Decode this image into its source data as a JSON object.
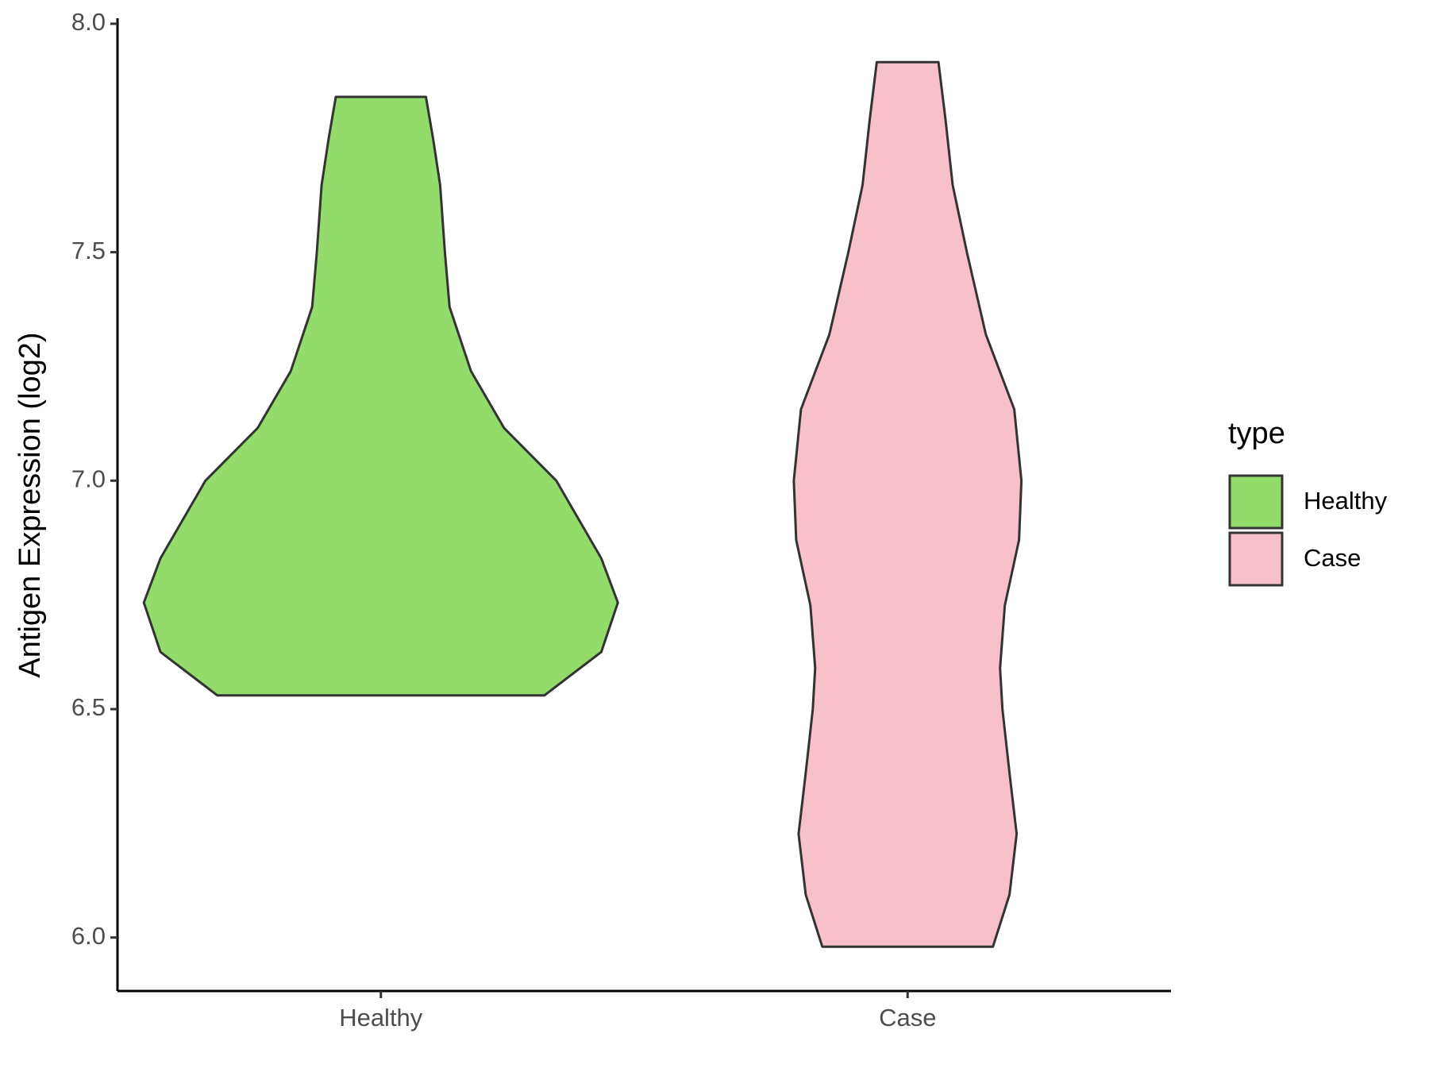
{
  "chart_data": {
    "type": "violin",
    "y_label": "Antigen Expression (log2)",
    "categories": [
      "Healthy",
      "Case"
    ],
    "legend_title": "type",
    "series": [
      {
        "name": "Healthy",
        "color": "#93db6b",
        "y": [
          6.53,
          6.625,
          6.733,
          6.83,
          7.0,
          7.115,
          7.24,
          7.38,
          7.5,
          7.647,
          7.75,
          7.84
        ],
        "density": [
          0.69,
          0.93,
          1.0,
          0.93,
          0.74,
          0.52,
          0.38,
          0.29,
          0.27,
          0.25,
          0.22,
          0.19
        ]
      },
      {
        "name": "Case",
        "color": "#f8c0cb",
        "y": [
          5.98,
          6.094,
          6.227,
          6.36,
          6.5,
          6.59,
          6.727,
          6.87,
          7.0,
          7.156,
          7.32,
          7.5,
          7.647,
          7.79,
          7.916
        ],
        "density": [
          0.36,
          0.43,
          0.46,
          0.43,
          0.4,
          0.39,
          0.41,
          0.47,
          0.48,
          0.45,
          0.33,
          0.25,
          0.19,
          0.16,
          0.13
        ]
      }
    ],
    "ylim": [
      5.883,
      8.012
    ],
    "yticks": [
      {
        "value": 6,
        "label": "6.0"
      },
      6.5,
      {
        "value": 7,
        "label": "7.0"
      },
      7.5,
      {
        "value": 8,
        "label": "8.0"
      }
    ]
  }
}
